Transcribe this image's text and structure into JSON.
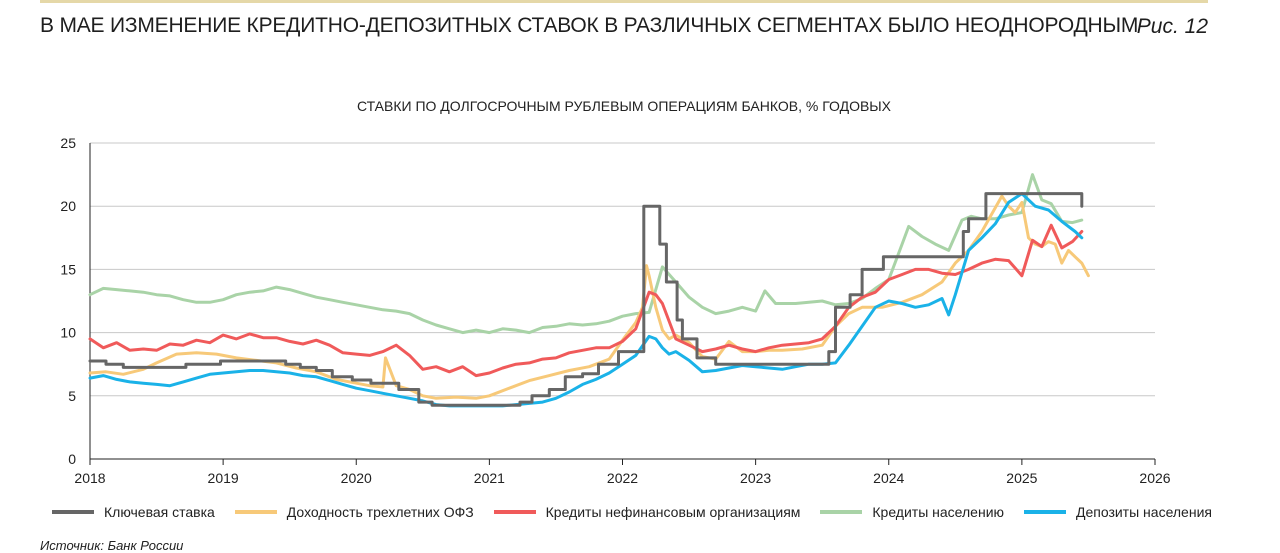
{
  "header": {
    "title": "В МАЕ ИЗМЕНЕНИЕ КРЕДИТНО-ДЕПОЗИТНЫХ СТАВОК В РАЗЛИЧНЫХ СЕГМЕНТАХ БЫЛО НЕОДНОРОДНЫМ",
    "figure_label": "Рис. 12"
  },
  "source": "Источник: Банк России",
  "chart_data": {
    "type": "line",
    "title": "СТАВКИ ПО ДОЛГОСРОЧНЫМ РУБЛЕВЫМ ОПЕРАЦИЯМ БАНКОВ, % ГОДОВЫХ",
    "xlabel": "",
    "ylabel": "",
    "xlim": [
      2018,
      2026
    ],
    "ylim": [
      0,
      25
    ],
    "x_ticks": [
      "2018",
      "2019",
      "2020",
      "2021",
      "2022",
      "2023",
      "2024",
      "2025",
      "2026"
    ],
    "y_ticks": [
      "0",
      "5",
      "10",
      "15",
      "20",
      "25"
    ],
    "grid": "horizontal",
    "legend_position": "bottom",
    "series": [
      {
        "name": "Ключевая ставка",
        "color": "#666666",
        "step": true,
        "x": [
          2018.0,
          2018.12,
          2018.25,
          2018.72,
          2018.98,
          2019.47,
          2019.58,
          2019.7,
          2019.82,
          2019.97,
          2020.11,
          2020.32,
          2020.47,
          2020.57,
          2021.23,
          2021.32,
          2021.45,
          2021.57,
          2021.7,
          2021.82,
          2021.97,
          2022.16,
          2022.28,
          2022.33,
          2022.41,
          2022.45,
          2022.56,
          2022.7,
          2023.55,
          2023.6,
          2023.71,
          2023.8,
          2023.96,
          2024.56,
          2024.6,
          2024.73,
          2024.8,
          2025.45
        ],
        "y": [
          7.75,
          7.5,
          7.25,
          7.5,
          7.75,
          7.5,
          7.25,
          7.0,
          6.5,
          6.25,
          6.0,
          5.5,
          4.5,
          4.25,
          4.5,
          5.0,
          5.5,
          6.5,
          6.75,
          7.5,
          8.5,
          20.0,
          17.0,
          14.0,
          11.0,
          9.5,
          8.0,
          7.5,
          8.5,
          12.0,
          13.0,
          15.0,
          16.0,
          18.0,
          19.0,
          21.0,
          21.0,
          20.0
        ]
      },
      {
        "name": "Доходность трехлетних ОФЗ",
        "color": "#f7c979",
        "x": [
          2018.0,
          2018.12,
          2018.25,
          2018.4,
          2018.5,
          2018.65,
          2018.8,
          2018.95,
          2019.1,
          2019.25,
          2019.4,
          2019.55,
          2019.7,
          2019.85,
          2020.0,
          2020.1,
          2020.2,
          2020.22,
          2020.3,
          2020.4,
          2020.5,
          2020.6,
          2020.75,
          2020.9,
          2021.0,
          2021.15,
          2021.3,
          2021.45,
          2021.6,
          2021.75,
          2021.9,
          2022.0,
          2022.1,
          2022.15,
          2022.18,
          2022.2,
          2022.25,
          2022.3,
          2022.35,
          2022.4,
          2022.5,
          2022.6,
          2022.7,
          2022.8,
          2022.9,
          2023.0,
          2023.1,
          2023.2,
          2023.35,
          2023.5,
          2023.6,
          2023.7,
          2023.8,
          2023.95,
          2024.1,
          2024.25,
          2024.4,
          2024.5,
          2024.6,
          2024.7,
          2024.78,
          2024.85,
          2024.9,
          2024.95,
          2025.0,
          2025.05,
          2025.1,
          2025.15,
          2025.2,
          2025.25,
          2025.3,
          2025.35,
          2025.4,
          2025.45,
          2025.5
        ],
        "y": [
          6.8,
          6.9,
          6.7,
          7.1,
          7.6,
          8.3,
          8.4,
          8.3,
          8.0,
          7.8,
          7.6,
          7.2,
          6.9,
          6.3,
          6.0,
          5.8,
          5.7,
          8.0,
          5.8,
          5.5,
          5.0,
          4.8,
          4.9,
          4.8,
          5.0,
          5.6,
          6.2,
          6.6,
          7.0,
          7.3,
          7.9,
          9.4,
          10.8,
          12.0,
          15.3,
          14.5,
          12.0,
          10.2,
          9.5,
          9.8,
          9.2,
          8.1,
          7.9,
          9.3,
          8.5,
          8.5,
          8.6,
          8.6,
          8.7,
          9.0,
          10.5,
          11.5,
          12.0,
          12.0,
          12.4,
          13.0,
          14.0,
          15.5,
          16.5,
          18.0,
          19.5,
          20.8,
          20.0,
          19.5,
          20.3,
          17.5,
          17.0,
          16.8,
          17.2,
          17.0,
          15.5,
          16.5,
          16.0,
          15.5,
          14.5
        ]
      },
      {
        "name": "Кредиты нефинансовым организациям",
        "color": "#f05a5a",
        "x": [
          2018.0,
          2018.1,
          2018.2,
          2018.3,
          2018.4,
          2018.5,
          2018.6,
          2018.7,
          2018.8,
          2018.9,
          2019.0,
          2019.1,
          2019.2,
          2019.3,
          2019.4,
          2019.5,
          2019.6,
          2019.7,
          2019.8,
          2019.9,
          2020.0,
          2020.1,
          2020.2,
          2020.3,
          2020.4,
          2020.5,
          2020.6,
          2020.7,
          2020.8,
          2020.9,
          2021.0,
          2021.1,
          2021.2,
          2021.3,
          2021.4,
          2021.5,
          2021.6,
          2021.7,
          2021.8,
          2021.9,
          2022.0,
          2022.1,
          2022.2,
          2022.25,
          2022.3,
          2022.4,
          2022.5,
          2022.6,
          2022.7,
          2022.8,
          2022.9,
          2023.0,
          2023.1,
          2023.2,
          2023.3,
          2023.4,
          2023.5,
          2023.6,
          2023.7,
          2023.8,
          2023.9,
          2024.0,
          2024.1,
          2024.2,
          2024.3,
          2024.4,
          2024.5,
          2024.6,
          2024.7,
          2024.8,
          2024.9,
          2025.0,
          2025.08,
          2025.15,
          2025.22,
          2025.3,
          2025.38,
          2025.45
        ],
        "y": [
          9.5,
          8.8,
          9.2,
          8.6,
          8.7,
          8.6,
          9.1,
          9.0,
          9.4,
          9.2,
          9.8,
          9.5,
          9.9,
          9.6,
          9.6,
          9.3,
          9.1,
          9.4,
          9.0,
          8.4,
          8.3,
          8.2,
          8.5,
          9.0,
          8.2,
          7.1,
          7.3,
          6.9,
          7.3,
          6.6,
          6.8,
          7.2,
          7.5,
          7.6,
          7.9,
          8.0,
          8.4,
          8.6,
          8.8,
          8.8,
          9.3,
          10.3,
          13.2,
          13.0,
          12.3,
          9.5,
          9.0,
          8.5,
          8.7,
          9.0,
          8.7,
          8.5,
          8.8,
          9.0,
          9.1,
          9.2,
          9.5,
          10.5,
          12.0,
          12.8,
          13.2,
          14.2,
          14.6,
          15.0,
          15.0,
          14.7,
          14.6,
          15.0,
          15.5,
          15.8,
          15.7,
          14.5,
          17.3,
          16.8,
          18.5,
          16.7,
          17.2,
          18.0
        ]
      },
      {
        "name": "Кредиты населению",
        "color": "#a9d3a7",
        "x": [
          2018.0,
          2018.1,
          2018.2,
          2018.3,
          2018.4,
          2018.5,
          2018.6,
          2018.7,
          2018.8,
          2018.9,
          2019.0,
          2019.1,
          2019.2,
          2019.3,
          2019.4,
          2019.5,
          2019.6,
          2019.7,
          2019.8,
          2019.9,
          2020.0,
          2020.1,
          2020.2,
          2020.3,
          2020.4,
          2020.5,
          2020.6,
          2020.7,
          2020.8,
          2020.9,
          2021.0,
          2021.1,
          2021.2,
          2021.3,
          2021.4,
          2021.5,
          2021.6,
          2021.7,
          2021.8,
          2021.9,
          2022.0,
          2022.1,
          2022.2,
          2022.3,
          2022.4,
          2022.5,
          2022.6,
          2022.7,
          2022.8,
          2022.9,
          2023.0,
          2023.07,
          2023.15,
          2023.3,
          2023.5,
          2023.6,
          2023.7,
          2023.8,
          2023.9,
          2024.0,
          2024.1,
          2024.15,
          2024.25,
          2024.35,
          2024.45,
          2024.55,
          2024.62,
          2024.7,
          2024.8,
          2024.9,
          2025.0,
          2025.08,
          2025.15,
          2025.22,
          2025.3,
          2025.38,
          2025.45
        ],
        "y": [
          13.0,
          13.5,
          13.4,
          13.3,
          13.2,
          13.0,
          12.9,
          12.6,
          12.4,
          12.4,
          12.6,
          13.0,
          13.2,
          13.3,
          13.6,
          13.4,
          13.1,
          12.8,
          12.6,
          12.4,
          12.2,
          12.0,
          11.8,
          11.7,
          11.5,
          11.0,
          10.6,
          10.3,
          10.0,
          10.2,
          10.0,
          10.3,
          10.2,
          10.0,
          10.4,
          10.5,
          10.7,
          10.6,
          10.7,
          10.9,
          11.3,
          11.5,
          11.6,
          15.2,
          14.0,
          12.8,
          12.0,
          11.5,
          11.7,
          12.0,
          11.7,
          13.3,
          12.3,
          12.3,
          12.5,
          12.2,
          12.3,
          12.7,
          13.5,
          14.2,
          17.0,
          18.4,
          17.6,
          17.0,
          16.5,
          18.9,
          19.2,
          19.0,
          19.0,
          19.3,
          19.5,
          22.5,
          20.5,
          20.2,
          18.8,
          18.7,
          18.9
        ]
      },
      {
        "name": "Депозиты населения",
        "color": "#1ab2e8",
        "x": [
          2018.0,
          2018.1,
          2018.2,
          2018.3,
          2018.4,
          2018.5,
          2018.6,
          2018.7,
          2018.8,
          2018.9,
          2019.0,
          2019.1,
          2019.2,
          2019.3,
          2019.4,
          2019.5,
          2019.6,
          2019.7,
          2019.8,
          2019.9,
          2020.0,
          2020.1,
          2020.2,
          2020.3,
          2020.4,
          2020.5,
          2020.6,
          2020.7,
          2020.8,
          2020.9,
          2021.0,
          2021.1,
          2021.2,
          2021.3,
          2021.4,
          2021.5,
          2021.6,
          2021.7,
          2021.8,
          2021.9,
          2022.0,
          2022.1,
          2022.2,
          2022.25,
          2022.3,
          2022.35,
          2022.4,
          2022.5,
          2022.6,
          2022.7,
          2022.8,
          2022.9,
          2023.0,
          2023.1,
          2023.2,
          2023.3,
          2023.4,
          2023.5,
          2023.6,
          2023.7,
          2023.8,
          2023.9,
          2024.0,
          2024.1,
          2024.2,
          2024.3,
          2024.4,
          2024.45,
          2024.5,
          2024.6,
          2024.7,
          2024.8,
          2024.9,
          2025.0,
          2025.1,
          2025.2,
          2025.3,
          2025.4,
          2025.45
        ],
        "y": [
          6.4,
          6.6,
          6.3,
          6.1,
          6.0,
          5.9,
          5.8,
          6.1,
          6.4,
          6.7,
          6.8,
          6.9,
          7.0,
          7.0,
          6.9,
          6.8,
          6.6,
          6.5,
          6.2,
          5.9,
          5.6,
          5.4,
          5.2,
          5.0,
          4.8,
          4.6,
          4.3,
          4.2,
          4.2,
          4.2,
          4.2,
          4.2,
          4.3,
          4.4,
          4.5,
          4.8,
          5.3,
          5.9,
          6.3,
          6.8,
          7.5,
          8.2,
          9.7,
          9.5,
          8.8,
          8.3,
          8.5,
          7.8,
          6.9,
          7.0,
          7.2,
          7.4,
          7.3,
          7.2,
          7.1,
          7.3,
          7.5,
          7.5,
          7.6,
          9.0,
          10.5,
          12.0,
          12.5,
          12.3,
          12.0,
          12.2,
          12.7,
          11.4,
          13.0,
          16.5,
          17.5,
          18.6,
          20.3,
          21.0,
          20.0,
          19.7,
          18.8,
          18.0,
          17.5
        ]
      }
    ]
  }
}
